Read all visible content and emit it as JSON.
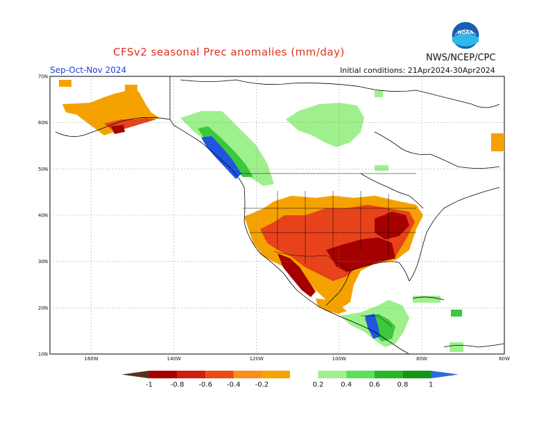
{
  "header": {
    "title": "CFSv2 seasonal Prec anomalies (mm/day)",
    "agency": "NWS/NCEP/CPC",
    "season": "Sep-Oct-Nov 2024",
    "initial_conditions": "Initial conditions: 21Apr2024-30Apr2024",
    "logo_text": "NOAA"
  },
  "axes": {
    "lat_labels": [
      "70N",
      "60N",
      "50N",
      "40N",
      "30N",
      "20N",
      "10N"
    ],
    "lon_labels": [
      "160W",
      "140W",
      "120W",
      "100W",
      "80W",
      "60W"
    ]
  },
  "colorbar": {
    "labels": [
      "-1",
      "-0.8",
      "-0.6",
      "-0.4",
      "-0.2",
      "0.2",
      "0.4",
      "0.6",
      "0.8",
      "1"
    ],
    "colors": [
      "#5a3020",
      "#a50000",
      "#cc1f0e",
      "#ea4a14",
      "#f98f1a",
      "#f5a200",
      "#ffffff",
      "#a0f090",
      "#5ae05a",
      "#26b626",
      "#149614",
      "#2a6cd8"
    ]
  },
  "legend_colors": {
    "dry_strong": "#a50000",
    "dry_mod": "#e8421a",
    "dry_light": "#f5a200",
    "wet_light": "#9ef08c",
    "wet_mod": "#3cc83c",
    "wet_strong": "#0f9a0f",
    "wet_extreme": "#1f56e0"
  }
}
